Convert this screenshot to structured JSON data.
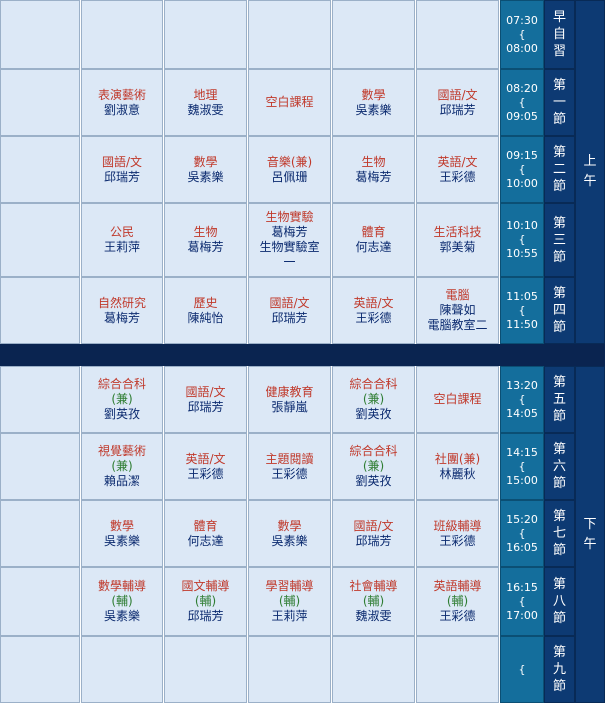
{
  "segments": {
    "morning": [
      "上",
      "午"
    ],
    "afternoon": [
      "下",
      "午"
    ]
  },
  "rows": [
    {
      "name": "morning-study",
      "period": [
        "早",
        "自",
        "習"
      ],
      "start": "07:30",
      "sep": "{",
      "end": "08:00",
      "cells": [
        [],
        [],
        [],
        [],
        []
      ]
    },
    {
      "name": "period-1",
      "period": [
        "第",
        "一",
        "節"
      ],
      "start": "08:20",
      "sep": "{",
      "end": "09:05",
      "cells": [
        [
          {
            "t": "表演藝術",
            "c": "subj"
          },
          {
            "t": "劉淑意",
            "c": "teach"
          }
        ],
        [
          {
            "t": "地理",
            "c": "subj"
          },
          {
            "t": "魏淑雯",
            "c": "teach"
          }
        ],
        [
          {
            "t": "空白課程",
            "c": "subj"
          }
        ],
        [
          {
            "t": "數學",
            "c": "subj"
          },
          {
            "t": "吳素樂",
            "c": "teach"
          }
        ],
        [
          {
            "t": "國語/文",
            "c": "subj"
          },
          {
            "t": "邱瑞芳",
            "c": "teach"
          }
        ]
      ]
    },
    {
      "name": "period-2",
      "period": [
        "第",
        "二",
        "節"
      ],
      "start": "09:15",
      "sep": "{",
      "end": "10:00",
      "cells": [
        [
          {
            "t": "國語/文",
            "c": "subj"
          },
          {
            "t": "邱瑞芳",
            "c": "teach"
          }
        ],
        [
          {
            "t": "數學",
            "c": "subj"
          },
          {
            "t": "吳素樂",
            "c": "teach"
          }
        ],
        [
          {
            "t": "音樂(兼)",
            "c": "subj"
          },
          {
            "t": "呂佩珊",
            "c": "teach"
          }
        ],
        [
          {
            "t": "生物",
            "c": "subj"
          },
          {
            "t": "葛梅芳",
            "c": "teach"
          }
        ],
        [
          {
            "t": "英語/文",
            "c": "subj"
          },
          {
            "t": "王彩德",
            "c": "teach"
          }
        ]
      ]
    },
    {
      "name": "period-3",
      "period": [
        "第",
        "三",
        "節"
      ],
      "start": "10:10",
      "sep": "{",
      "end": "10:55",
      "cells": [
        [
          {
            "t": "公民",
            "c": "subj"
          },
          {
            "t": "王莉萍",
            "c": "teach"
          }
        ],
        [
          {
            "t": "生物",
            "c": "subj"
          },
          {
            "t": "葛梅芳",
            "c": "teach"
          }
        ],
        [
          {
            "t": "生物實驗",
            "c": "subj"
          },
          {
            "t": "葛梅芳",
            "c": "teach"
          },
          {
            "t": "生物實驗室",
            "c": "teach"
          },
          {
            "t": "一",
            "c": "teach"
          }
        ],
        [
          {
            "t": "體育",
            "c": "subj"
          },
          {
            "t": "何志達",
            "c": "teach"
          }
        ],
        [
          {
            "t": "生活科技",
            "c": "subj"
          },
          {
            "t": "郭美菊",
            "c": "teach"
          }
        ]
      ]
    },
    {
      "name": "period-4",
      "period": [
        "第",
        "四",
        "節"
      ],
      "start": "11:05",
      "sep": "{",
      "end": "11:50",
      "cells": [
        [
          {
            "t": "自然研究",
            "c": "subj"
          },
          {
            "t": "葛梅芳",
            "c": "teach"
          }
        ],
        [
          {
            "t": "歷史",
            "c": "subj"
          },
          {
            "t": "陳純怡",
            "c": "teach"
          }
        ],
        [
          {
            "t": "國語/文",
            "c": "subj"
          },
          {
            "t": "邱瑞芳",
            "c": "teach"
          }
        ],
        [
          {
            "t": "英語/文",
            "c": "subj"
          },
          {
            "t": "王彩德",
            "c": "teach"
          }
        ],
        [
          {
            "t": "電腦",
            "c": "subj"
          },
          {
            "t": "陳聲如",
            "c": "teach"
          },
          {
            "t": "電腦教室二",
            "c": "teach"
          }
        ]
      ]
    },
    {
      "name": "period-5",
      "period": [
        "第",
        "五",
        "節"
      ],
      "start": "13:20",
      "sep": "{",
      "end": "14:05",
      "cells": [
        [
          {
            "t": "綜合合科",
            "c": "subj"
          },
          {
            "t": "(兼)",
            "c": "tag"
          },
          {
            "t": "劉英孜",
            "c": "teach"
          }
        ],
        [
          {
            "t": "國語/文",
            "c": "subj"
          },
          {
            "t": "邱瑞芳",
            "c": "teach"
          }
        ],
        [
          {
            "t": "健康教育",
            "c": "subj"
          },
          {
            "t": "張靜嵐",
            "c": "teach"
          }
        ],
        [
          {
            "t": "綜合合科",
            "c": "subj"
          },
          {
            "t": "(兼)",
            "c": "tag"
          },
          {
            "t": "劉英孜",
            "c": "teach"
          }
        ],
        [
          {
            "t": "空白課程",
            "c": "subj"
          }
        ]
      ]
    },
    {
      "name": "period-6",
      "period": [
        "第",
        "六",
        "節"
      ],
      "start": "14:15",
      "sep": "{",
      "end": "15:00",
      "cells": [
        [
          {
            "t": "視覺藝術",
            "c": "subj"
          },
          {
            "t": "(兼)",
            "c": "tag"
          },
          {
            "t": "賴品潔",
            "c": "teach"
          }
        ],
        [
          {
            "t": "英語/文",
            "c": "subj"
          },
          {
            "t": "王彩德",
            "c": "teach"
          }
        ],
        [
          {
            "t": "主題閱讀",
            "c": "subj"
          },
          {
            "t": "王彩德",
            "c": "teach"
          }
        ],
        [
          {
            "t": "綜合合科",
            "c": "subj"
          },
          {
            "t": "(兼)",
            "c": "tag"
          },
          {
            "t": "劉英孜",
            "c": "teach"
          }
        ],
        [
          {
            "t": "社團(兼)",
            "c": "subj"
          },
          {
            "t": "林麗秋",
            "c": "teach"
          }
        ]
      ]
    },
    {
      "name": "period-7",
      "period": [
        "第",
        "七",
        "節"
      ],
      "start": "15:20",
      "sep": "{",
      "end": "16:05",
      "cells": [
        [
          {
            "t": "數學",
            "c": "subj"
          },
          {
            "t": "吳素樂",
            "c": "teach"
          }
        ],
        [
          {
            "t": "體育",
            "c": "subj"
          },
          {
            "t": "何志達",
            "c": "teach"
          }
        ],
        [
          {
            "t": "數學",
            "c": "subj"
          },
          {
            "t": "吳素樂",
            "c": "teach"
          }
        ],
        [
          {
            "t": "國語/文",
            "c": "subj"
          },
          {
            "t": "邱瑞芳",
            "c": "teach"
          }
        ],
        [
          {
            "t": "班級輔導",
            "c": "subj"
          },
          {
            "t": "王彩德",
            "c": "teach"
          }
        ]
      ]
    },
    {
      "name": "period-8",
      "period": [
        "第",
        "八",
        "節"
      ],
      "start": "16:15",
      "sep": "{",
      "end": "17:00",
      "cells": [
        [
          {
            "t": "數學輔導",
            "c": "subj"
          },
          {
            "t": "(輔)",
            "c": "tag"
          },
          {
            "t": "吳素樂",
            "c": "teach"
          }
        ],
        [
          {
            "t": "國文輔導",
            "c": "subj"
          },
          {
            "t": "(輔)",
            "c": "tag"
          },
          {
            "t": "邱瑞芳",
            "c": "teach"
          }
        ],
        [
          {
            "t": "學習輔導",
            "c": "subj"
          },
          {
            "t": "(輔)",
            "c": "tag"
          },
          {
            "t": "王莉萍",
            "c": "teach"
          }
        ],
        [
          {
            "t": "社會輔導",
            "c": "subj"
          },
          {
            "t": "(輔)",
            "c": "tag"
          },
          {
            "t": "魏淑雯",
            "c": "teach"
          }
        ],
        [
          {
            "t": "英語輔導",
            "c": "subj"
          },
          {
            "t": "(輔)",
            "c": "tag"
          },
          {
            "t": "王彩德",
            "c": "teach"
          }
        ]
      ]
    },
    {
      "name": "period-9",
      "period": [
        "第",
        "九",
        "節"
      ],
      "start": "",
      "sep": "{",
      "end": "",
      "cells": [
        [],
        [],
        [],
        [],
        []
      ]
    }
  ]
}
